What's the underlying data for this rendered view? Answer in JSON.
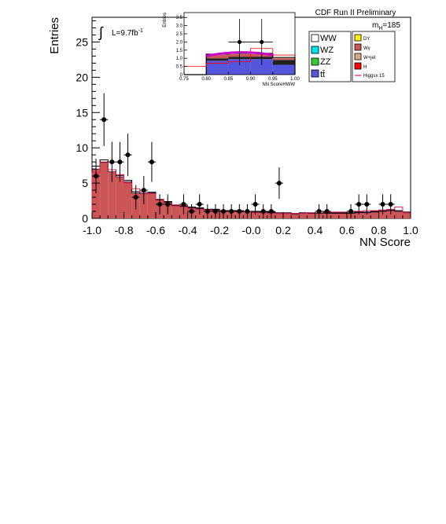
{
  "chart_data": {
    "type": "bar",
    "header": "CDF Run II Preliminary",
    "luminosity_label": "L=9.7fb",
    "luminosity_exp": "-1",
    "integral_symbol": "∫",
    "mass_label": "m",
    "mass_sub": "H",
    "mass_value": "=185",
    "xlabel": "NN Score",
    "ylabel": "Entries",
    "xlim": [
      -1.0,
      1.0
    ],
    "ylim": [
      0,
      28.5
    ],
    "x_ticks": [
      "-1.0",
      "-0.8",
      "-0.6",
      "-0.4",
      "-0.2",
      "-0.0",
      "0.2",
      "0.4",
      "0.6",
      "0.8",
      "1.0"
    ],
    "y_ticks": [
      "0",
      "5",
      "10",
      "15",
      "20",
      "25"
    ],
    "bin_edges": [
      -1.0,
      -0.95,
      -0.9,
      -0.85,
      -0.8,
      -0.75,
      -0.7,
      -0.65,
      -0.6,
      -0.55,
      -0.5,
      -0.45,
      -0.4,
      -0.35,
      -0.3,
      -0.25,
      -0.2,
      -0.15,
      -0.1,
      -0.05,
      0.0,
      0.05,
      0.1,
      0.15,
      0.2,
      0.25,
      0.3,
      0.35,
      0.4,
      0.45,
      0.5,
      0.55,
      0.6,
      0.65,
      0.7,
      0.75,
      0.8,
      0.85,
      0.9,
      0.95,
      1.0
    ],
    "wgamma": [
      7.0,
      8.0,
      6.6,
      5.9,
      5.2,
      3.6,
      3.5,
      3.6,
      2.6,
      2.3,
      1.8,
      1.7,
      1.5,
      1.4,
      1.2,
      1.2,
      1.0,
      1.0,
      1.0,
      0.9,
      0.9,
      0.8,
      0.8,
      0.7,
      0.7,
      0.6,
      0.7,
      0.7,
      0.7,
      0.7,
      0.7,
      0.7,
      0.7,
      0.8,
      0.8,
      0.9,
      1.0,
      1.1,
      1.0,
      0.8
    ],
    "background_total": [
      7.4,
      8.3,
      6.9,
      6.1,
      5.4,
      3.8,
      3.7,
      3.7,
      2.7,
      2.4,
      1.9,
      1.8,
      1.6,
      1.5,
      1.3,
      1.3,
      1.1,
      1.1,
      1.1,
      1.0,
      1.0,
      0.9,
      0.9,
      0.8,
      0.8,
      0.7,
      0.8,
      0.8,
      0.8,
      0.8,
      0.8,
      0.8,
      0.8,
      0.9,
      0.9,
      1.0,
      1.1,
      1.2,
      1.1,
      0.9
    ],
    "signal_x15": [
      6.5,
      7.9,
      6.9,
      6.2,
      5.0,
      4.2,
      3.7,
      3.5,
      2.7,
      2.2,
      1.9,
      1.6,
      1.4,
      1.3,
      1.2,
      1.1,
      1.0,
      1.0,
      0.9,
      0.9,
      0.8,
      0.8,
      0.7,
      0.7,
      0.7,
      0.7,
      0.7,
      0.8,
      0.8,
      0.9,
      0.9,
      0.9,
      1.0,
      1.0,
      1.1,
      1.1,
      1.2,
      1.3,
      1.6,
      0.8
    ],
    "points_x": [
      -0.975,
      -0.925,
      -0.875,
      -0.825,
      -0.775,
      -0.725,
      -0.675,
      -0.625,
      -0.575,
      -0.525,
      -0.425,
      -0.375,
      -0.325,
      -0.275,
      -0.225,
      -0.175,
      -0.125,
      -0.075,
      -0.025,
      0.025,
      0.075,
      0.125,
      0.175,
      0.425,
      0.475,
      0.625,
      0.675,
      0.725,
      0.825,
      0.875
    ],
    "points_y": [
      6,
      14,
      8,
      8,
      9,
      3,
      4,
      8,
      2,
      2,
      2,
      1,
      2,
      1,
      1,
      1,
      1,
      1,
      1,
      2,
      1,
      1,
      5,
      1,
      1,
      1,
      2,
      2,
      2,
      2
    ],
    "legend": {
      "col1": [
        "WW",
        "WZ",
        "ZZ",
        "tt̄"
      ],
      "col2": [
        "DY",
        "Wγ",
        "W+jet",
        "H",
        "Higgsx 15"
      ]
    },
    "colors": {
      "WW": "#ffffff",
      "WZ": "#00e5ee",
      "ZZ": "#33cc33",
      "tt": "#5555dd",
      "DY": "#ffee00",
      "Wgamma": "#cc5555",
      "Wjet": "#d4aa88",
      "H": "#ff0000",
      "Higgs": "#dd2255",
      "syst": "#cc00cc"
    },
    "inset": {
      "xlabel": "NN ScoreHWW",
      "ylabel": "Entries",
      "xlim": [
        0.75,
        1.0
      ],
      "ylim": [
        0,
        3.8
      ],
      "x_ticks": [
        "0.75",
        "0.80",
        "0.85",
        "0.90",
        "0.95",
        "1.00"
      ],
      "y_ticks": [
        "0",
        "0.5",
        "1.0",
        "1.5",
        "2.0",
        "2.5",
        "3.0",
        "3.5"
      ],
      "bin_edges": [
        0.75,
        0.8,
        0.85,
        0.9,
        0.95,
        1.0
      ],
      "tt": [
        0,
        0.85,
        0.95,
        0.95,
        0.6
      ],
      "WW": [
        0,
        0.15,
        0.15,
        0.15,
        0.3
      ],
      "Wgamma": [
        0,
        0.2,
        0.15,
        0.15,
        0.1
      ],
      "background_total": [
        0,
        1.25,
        1.3,
        1.3,
        1.05
      ],
      "higgs": [
        0.5,
        0.7,
        0.8,
        1.6,
        1.2
      ],
      "points_x": [
        0.875,
        0.925
      ],
      "points_y": [
        2,
        2
      ]
    }
  }
}
